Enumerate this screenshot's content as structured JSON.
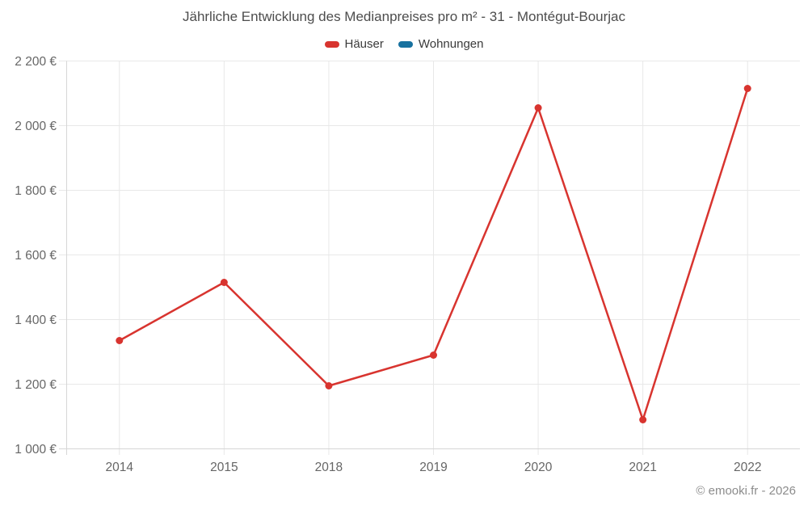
{
  "title": "Jährliche Entwicklung des Medianpreises pro m² - 31 - Montégut-Bourjac",
  "footer": "© emooki.fr - 2026",
  "legend": [
    {
      "label": "Häuser",
      "color": "#d8342f"
    },
    {
      "label": "Wohnungen",
      "color": "#17719f"
    }
  ],
  "colors": {
    "background": "#ffffff",
    "grid": "#e8e8e8",
    "axis": "#d6d6d6",
    "tick_label": "#666666",
    "title_text": "#4d4d4d",
    "footer_text": "#8c8c8c"
  },
  "chart_data": {
    "type": "line",
    "title": "Jährliche Entwicklung des Medianpreises pro m² - 31 - Montégut-Bourjac",
    "categories": [
      "2014",
      "2015",
      "2018",
      "2019",
      "2020",
      "2021",
      "2022"
    ],
    "series": [
      {
        "name": "Häuser",
        "color": "#d8342f",
        "values": [
          1335,
          1515,
          1195,
          1290,
          2055,
          1090,
          2115
        ]
      },
      {
        "name": "Wohnungen",
        "color": "#17719f",
        "values": []
      }
    ],
    "xlabel": "",
    "ylabel": "",
    "ylim": [
      1000,
      2200
    ],
    "yticks": [
      1000,
      1200,
      1400,
      1600,
      1800,
      2000,
      2200
    ],
    "ytick_labels": [
      "1 000 €",
      "1 200 €",
      "1 400 €",
      "1 600 €",
      "1 800 €",
      "2 000 €",
      "2 200 €"
    ],
    "grid": true,
    "legend_position": "top",
    "marker": "circle"
  }
}
